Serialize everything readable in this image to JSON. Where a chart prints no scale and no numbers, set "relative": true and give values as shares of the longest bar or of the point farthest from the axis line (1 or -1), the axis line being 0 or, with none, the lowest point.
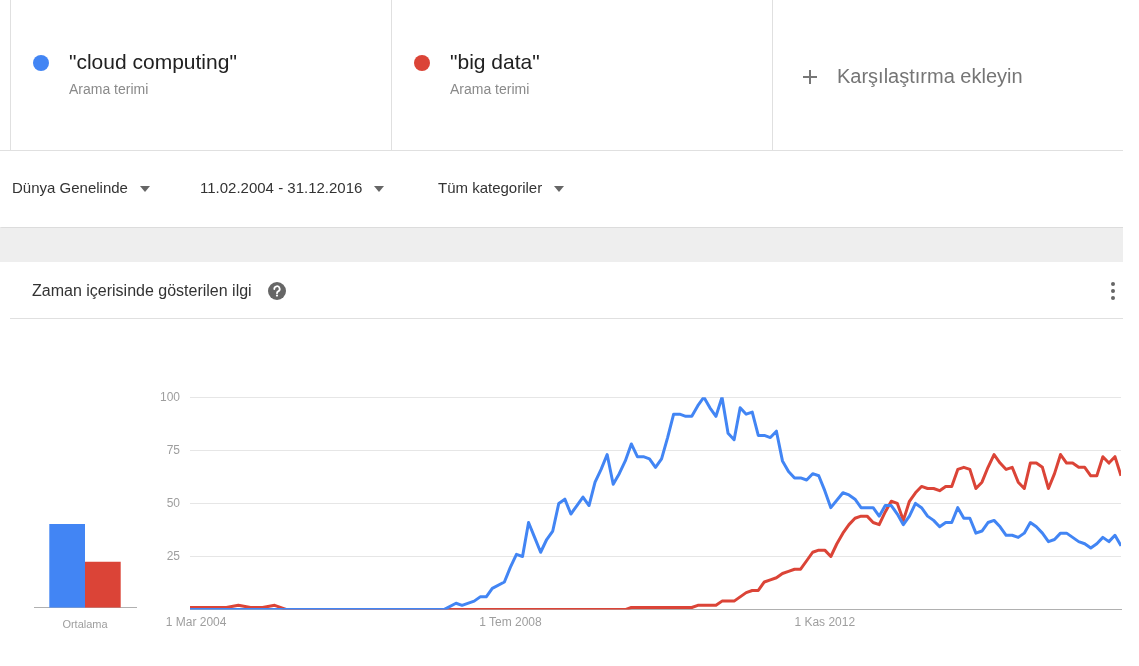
{
  "chart_data": [
    {
      "type": "bar",
      "categories": [
        "Ortalama"
      ],
      "relative": true,
      "series": [
        {
          "color": "#4285f4",
          "values": [
            1
          ]
        },
        {
          "color": "#db4437",
          "values": [
            0.55
          ]
        }
      ]
    },
    {
      "type": "line",
      "title": "Zaman içerisinde gösterilen ilgi",
      "legend": "top",
      "grid": "y",
      "annotations": [
        "Arama terimi",
        "Arama terimi",
        "Karşılaştırma ekleyin",
        "Dünya Genelinde",
        "11.02.2004 - 31.12.2016",
        "Tüm kategoriler"
      ],
      "xlim": [
        "2004-02",
        "2016-12"
      ],
      "xticks": [
        {
          "value": "2004-03",
          "label": "1 Mar 2004"
        },
        {
          "value": "2008-07",
          "label": "1 Tem 2008"
        },
        {
          "value": "2012-11",
          "label": "1 Kas 2012"
        }
      ],
      "ylim": [
        0,
        100
      ],
      "yticks": [
        25,
        50,
        75,
        100
      ],
      "series": [
        {
          "name": "\"cloud computing\"",
          "color": "#4285f4",
          "x": [
            "2004-02",
            "2007-08",
            "2007-10",
            "2007-11",
            "2008-01",
            "2008-02",
            "2008-03",
            "2008-04",
            "2008-06",
            "2008-07",
            "2008-08",
            "2008-09",
            "2008-10",
            "2008-11",
            "2008-12",
            "2009-01",
            "2009-02",
            "2009-03",
            "2009-04",
            "2009-05",
            "2009-06",
            "2009-07",
            "2009-08",
            "2009-09",
            "2009-10",
            "2009-11",
            "2009-12",
            "2010-01",
            "2010-02",
            "2010-03",
            "2010-04",
            "2010-05",
            "2010-06",
            "2010-07",
            "2010-08",
            "2010-09",
            "2010-10",
            "2010-11",
            "2010-12",
            "2011-01",
            "2011-02",
            "2011-03",
            "2011-04",
            "2011-05",
            "2011-06",
            "2011-07",
            "2011-08",
            "2011-09",
            "2011-10",
            "2011-11",
            "2011-12",
            "2012-01",
            "2012-02",
            "2012-03",
            "2012-04",
            "2012-05",
            "2012-06",
            "2012-07",
            "2012-08",
            "2012-09",
            "2012-10",
            "2012-11",
            "2012-12",
            "2013-02",
            "2013-03",
            "2013-04",
            "2013-05",
            "2013-06",
            "2013-07",
            "2013-08",
            "2013-09",
            "2013-10",
            "2013-11",
            "2013-12",
            "2014-01",
            "2014-02",
            "2014-03",
            "2014-04",
            "2014-05",
            "2014-06",
            "2014-07",
            "2014-08",
            "2014-09",
            "2014-10",
            "2014-11",
            "2014-12",
            "2015-01",
            "2015-02",
            "2015-03",
            "2015-04",
            "2015-05",
            "2015-06",
            "2015-07",
            "2015-08",
            "2015-09",
            "2015-10",
            "2015-11",
            "2015-12",
            "2016-01",
            "2016-02",
            "2016-03",
            "2016-04",
            "2016-05",
            "2016-06",
            "2016-07",
            "2016-08",
            "2016-09",
            "2016-10",
            "2016-11",
            "2016-12"
          ],
          "values": [
            0,
            0,
            3,
            2,
            4,
            6,
            6,
            10,
            13,
            20,
            26,
            25,
            41,
            34,
            27,
            33,
            37,
            50,
            52,
            45,
            49,
            53,
            49,
            60,
            66,
            73,
            59,
            64,
            70,
            78,
            72,
            72,
            71,
            67,
            71,
            81,
            92,
            92,
            91,
            91,
            96,
            100,
            95,
            91,
            100,
            83,
            80,
            95,
            92,
            93,
            82,
            82,
            81,
            84,
            70,
            65,
            62,
            62,
            61,
            64,
            63,
            56,
            48,
            55,
            54,
            52,
            48,
            48,
            48,
            44,
            49,
            49,
            45,
            40,
            44,
            50,
            48,
            44,
            42,
            39,
            41,
            41,
            48,
            43,
            43,
            36,
            37,
            41,
            42,
            39,
            35,
            35,
            34,
            36,
            41,
            39,
            36,
            32,
            33,
            36,
            36,
            34,
            32,
            31,
            29,
            31,
            34,
            32,
            35,
            30
          ]
        },
        {
          "name": "\"big data\"",
          "color": "#db4437",
          "x": [
            "2004-02",
            "2004-04",
            "2004-06",
            "2004-08",
            "2004-10",
            "2004-12",
            "2005-02",
            "2005-04",
            "2005-06",
            "2010-02",
            "2010-03",
            "2010-06",
            "2011-01",
            "2011-02",
            "2011-05",
            "2011-06",
            "2011-08",
            "2011-09",
            "2011-10",
            "2011-11",
            "2011-12",
            "2012-01",
            "2012-02",
            "2012-03",
            "2012-04",
            "2012-05",
            "2012-06",
            "2012-07",
            "2012-08",
            "2012-09",
            "2012-10",
            "2012-11",
            "2012-12",
            "2013-01",
            "2013-02",
            "2013-03",
            "2013-04",
            "2013-05",
            "2013-06",
            "2013-07",
            "2013-08",
            "2013-09",
            "2013-10",
            "2013-11",
            "2013-12",
            "2014-01",
            "2014-02",
            "2014-03",
            "2014-04",
            "2014-05",
            "2014-06",
            "2014-07",
            "2014-08",
            "2014-09",
            "2014-10",
            "2014-11",
            "2014-12",
            "2015-01",
            "2015-02",
            "2015-03",
            "2015-04",
            "2015-05",
            "2015-06",
            "2015-07",
            "2015-08",
            "2015-09",
            "2015-10",
            "2015-11",
            "2015-12",
            "2016-01",
            "2016-02",
            "2016-03",
            "2016-04",
            "2016-05",
            "2016-06",
            "2016-07",
            "2016-08",
            "2016-09",
            "2016-10",
            "2016-11",
            "2016-12"
          ],
          "values": [
            1,
            1,
            1,
            1,
            2,
            1,
            1,
            2,
            0,
            0,
            1,
            1,
            1,
            2,
            2,
            4,
            4,
            6,
            8,
            9,
            9,
            13,
            14,
            15,
            17,
            18,
            19,
            19,
            23,
            27,
            28,
            28,
            25,
            31,
            36,
            40,
            43,
            44,
            44,
            41,
            40,
            46,
            51,
            50,
            42,
            51,
            55,
            58,
            57,
            57,
            56,
            58,
            58,
            66,
            67,
            66,
            57,
            60,
            67,
            73,
            69,
            66,
            67,
            60,
            57,
            69,
            69,
            67,
            57,
            64,
            73,
            69,
            69,
            67,
            67,
            63,
            63,
            72,
            69,
            72,
            63
          ]
        }
      ]
    }
  ]
}
